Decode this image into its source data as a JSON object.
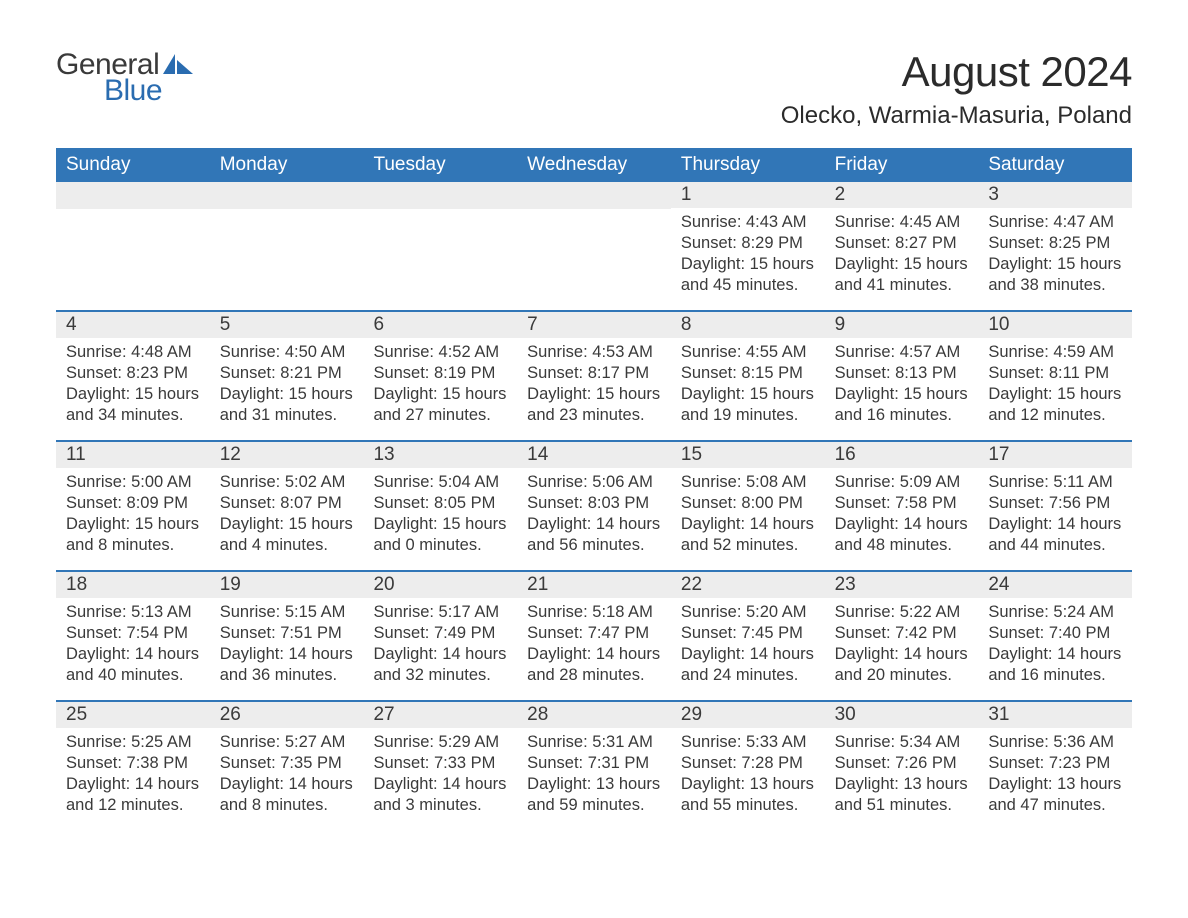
{
  "logo": {
    "text_top": "General",
    "text_bottom": "Blue",
    "color_top": "#3a3a3a",
    "color_bottom": "#2a6cb0",
    "shape_fill": "#2a6cb0"
  },
  "title": "August 2024",
  "subtitle": "Olecko, Warmia-Masuria, Poland",
  "colors": {
    "header_band": "#3176b7",
    "header_text": "#ffffff",
    "day_band": "#ededed",
    "week_divider": "#3176b7",
    "body_text": "#3a3a3a",
    "background": "#ffffff"
  },
  "typography": {
    "title_fontsize": 42,
    "subtitle_fontsize": 24,
    "dow_fontsize": 19,
    "daynum_fontsize": 19,
    "body_fontsize": 16.5,
    "font_family": "Arial"
  },
  "days_of_week": [
    "Sunday",
    "Monday",
    "Tuesday",
    "Wednesday",
    "Thursday",
    "Friday",
    "Saturday"
  ],
  "weeks": [
    [
      {
        "num": "",
        "sunrise": "",
        "sunset": "",
        "daylight": ""
      },
      {
        "num": "",
        "sunrise": "",
        "sunset": "",
        "daylight": ""
      },
      {
        "num": "",
        "sunrise": "",
        "sunset": "",
        "daylight": ""
      },
      {
        "num": "",
        "sunrise": "",
        "sunset": "",
        "daylight": ""
      },
      {
        "num": "1",
        "sunrise": "Sunrise: 4:43 AM",
        "sunset": "Sunset: 8:29 PM",
        "daylight": "Daylight: 15 hours and 45 minutes."
      },
      {
        "num": "2",
        "sunrise": "Sunrise: 4:45 AM",
        "sunset": "Sunset: 8:27 PM",
        "daylight": "Daylight: 15 hours and 41 minutes."
      },
      {
        "num": "3",
        "sunrise": "Sunrise: 4:47 AM",
        "sunset": "Sunset: 8:25 PM",
        "daylight": "Daylight: 15 hours and 38 minutes."
      }
    ],
    [
      {
        "num": "4",
        "sunrise": "Sunrise: 4:48 AM",
        "sunset": "Sunset: 8:23 PM",
        "daylight": "Daylight: 15 hours and 34 minutes."
      },
      {
        "num": "5",
        "sunrise": "Sunrise: 4:50 AM",
        "sunset": "Sunset: 8:21 PM",
        "daylight": "Daylight: 15 hours and 31 minutes."
      },
      {
        "num": "6",
        "sunrise": "Sunrise: 4:52 AM",
        "sunset": "Sunset: 8:19 PM",
        "daylight": "Daylight: 15 hours and 27 minutes."
      },
      {
        "num": "7",
        "sunrise": "Sunrise: 4:53 AM",
        "sunset": "Sunset: 8:17 PM",
        "daylight": "Daylight: 15 hours and 23 minutes."
      },
      {
        "num": "8",
        "sunrise": "Sunrise: 4:55 AM",
        "sunset": "Sunset: 8:15 PM",
        "daylight": "Daylight: 15 hours and 19 minutes."
      },
      {
        "num": "9",
        "sunrise": "Sunrise: 4:57 AM",
        "sunset": "Sunset: 8:13 PM",
        "daylight": "Daylight: 15 hours and 16 minutes."
      },
      {
        "num": "10",
        "sunrise": "Sunrise: 4:59 AM",
        "sunset": "Sunset: 8:11 PM",
        "daylight": "Daylight: 15 hours and 12 minutes."
      }
    ],
    [
      {
        "num": "11",
        "sunrise": "Sunrise: 5:00 AM",
        "sunset": "Sunset: 8:09 PM",
        "daylight": "Daylight: 15 hours and 8 minutes."
      },
      {
        "num": "12",
        "sunrise": "Sunrise: 5:02 AM",
        "sunset": "Sunset: 8:07 PM",
        "daylight": "Daylight: 15 hours and 4 minutes."
      },
      {
        "num": "13",
        "sunrise": "Sunrise: 5:04 AM",
        "sunset": "Sunset: 8:05 PM",
        "daylight": "Daylight: 15 hours and 0 minutes."
      },
      {
        "num": "14",
        "sunrise": "Sunrise: 5:06 AM",
        "sunset": "Sunset: 8:03 PM",
        "daylight": "Daylight: 14 hours and 56 minutes."
      },
      {
        "num": "15",
        "sunrise": "Sunrise: 5:08 AM",
        "sunset": "Sunset: 8:00 PM",
        "daylight": "Daylight: 14 hours and 52 minutes."
      },
      {
        "num": "16",
        "sunrise": "Sunrise: 5:09 AM",
        "sunset": "Sunset: 7:58 PM",
        "daylight": "Daylight: 14 hours and 48 minutes."
      },
      {
        "num": "17",
        "sunrise": "Sunrise: 5:11 AM",
        "sunset": "Sunset: 7:56 PM",
        "daylight": "Daylight: 14 hours and 44 minutes."
      }
    ],
    [
      {
        "num": "18",
        "sunrise": "Sunrise: 5:13 AM",
        "sunset": "Sunset: 7:54 PM",
        "daylight": "Daylight: 14 hours and 40 minutes."
      },
      {
        "num": "19",
        "sunrise": "Sunrise: 5:15 AM",
        "sunset": "Sunset: 7:51 PM",
        "daylight": "Daylight: 14 hours and 36 minutes."
      },
      {
        "num": "20",
        "sunrise": "Sunrise: 5:17 AM",
        "sunset": "Sunset: 7:49 PM",
        "daylight": "Daylight: 14 hours and 32 minutes."
      },
      {
        "num": "21",
        "sunrise": "Sunrise: 5:18 AM",
        "sunset": "Sunset: 7:47 PM",
        "daylight": "Daylight: 14 hours and 28 minutes."
      },
      {
        "num": "22",
        "sunrise": "Sunrise: 5:20 AM",
        "sunset": "Sunset: 7:45 PM",
        "daylight": "Daylight: 14 hours and 24 minutes."
      },
      {
        "num": "23",
        "sunrise": "Sunrise: 5:22 AM",
        "sunset": "Sunset: 7:42 PM",
        "daylight": "Daylight: 14 hours and 20 minutes."
      },
      {
        "num": "24",
        "sunrise": "Sunrise: 5:24 AM",
        "sunset": "Sunset: 7:40 PM",
        "daylight": "Daylight: 14 hours and 16 minutes."
      }
    ],
    [
      {
        "num": "25",
        "sunrise": "Sunrise: 5:25 AM",
        "sunset": "Sunset: 7:38 PM",
        "daylight": "Daylight: 14 hours and 12 minutes."
      },
      {
        "num": "26",
        "sunrise": "Sunrise: 5:27 AM",
        "sunset": "Sunset: 7:35 PM",
        "daylight": "Daylight: 14 hours and 8 minutes."
      },
      {
        "num": "27",
        "sunrise": "Sunrise: 5:29 AM",
        "sunset": "Sunset: 7:33 PM",
        "daylight": "Daylight: 14 hours and 3 minutes."
      },
      {
        "num": "28",
        "sunrise": "Sunrise: 5:31 AM",
        "sunset": "Sunset: 7:31 PM",
        "daylight": "Daylight: 13 hours and 59 minutes."
      },
      {
        "num": "29",
        "sunrise": "Sunrise: 5:33 AM",
        "sunset": "Sunset: 7:28 PM",
        "daylight": "Daylight: 13 hours and 55 minutes."
      },
      {
        "num": "30",
        "sunrise": "Sunrise: 5:34 AM",
        "sunset": "Sunset: 7:26 PM",
        "daylight": "Daylight: 13 hours and 51 minutes."
      },
      {
        "num": "31",
        "sunrise": "Sunrise: 5:36 AM",
        "sunset": "Sunset: 7:23 PM",
        "daylight": "Daylight: 13 hours and 47 minutes."
      }
    ]
  ]
}
